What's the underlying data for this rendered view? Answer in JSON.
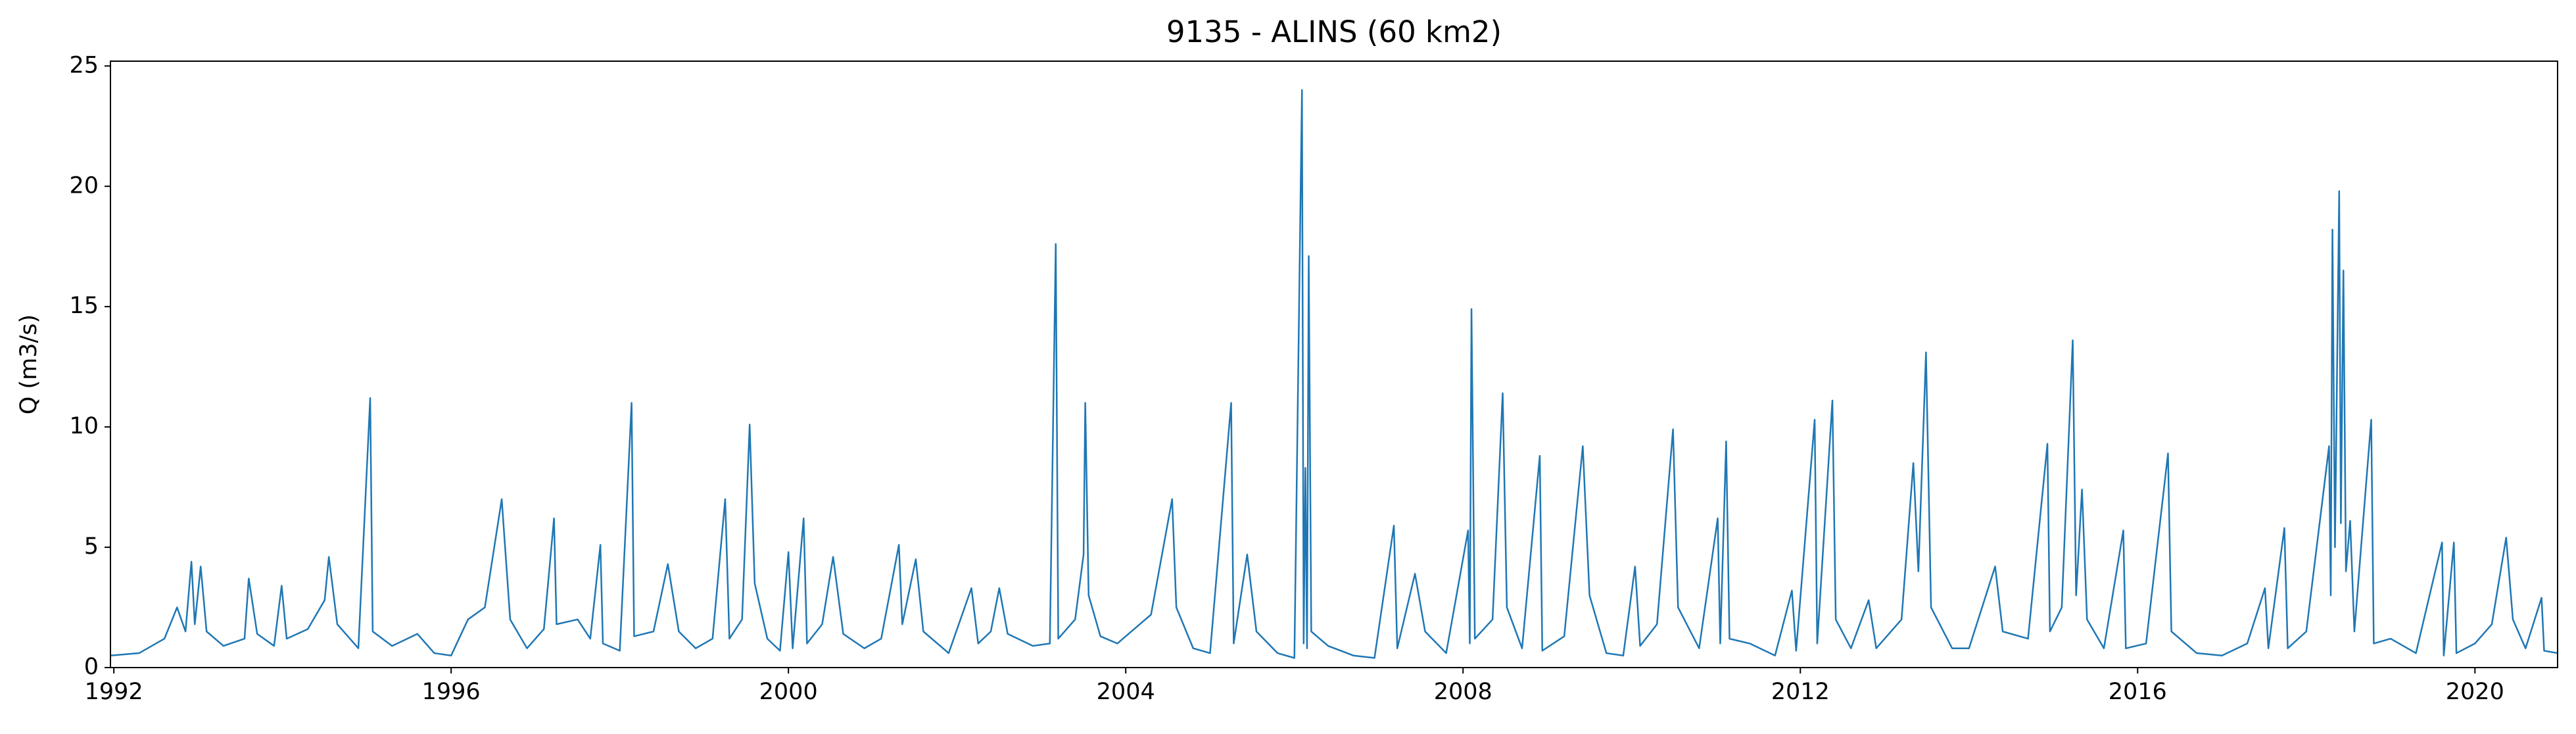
{
  "chart_data": {
    "type": "line",
    "title": "9135 - ALINS (60 km2)",
    "y_label": "Q (m3/s)",
    "color": "#1f77b4",
    "x": [
      1991.96,
      1992.3,
      1992.6,
      1992.75,
      1992.85,
      1992.92,
      1992.96,
      1993.03,
      1993.1,
      1993.3,
      1993.55,
      1993.6,
      1993.7,
      1993.9,
      1993.99,
      1994.05,
      1994.3,
      1994.5,
      1994.55,
      1994.65,
      1994.9,
      1995.04,
      1995.07,
      1995.3,
      1995.6,
      1995.8,
      1996.0,
      1996.2,
      1996.4,
      1996.6,
      1996.7,
      1996.9,
      1997.1,
      1997.22,
      1997.25,
      1997.5,
      1997.65,
      1997.77,
      1997.8,
      1998.0,
      1998.14,
      1998.17,
      1998.4,
      1998.57,
      1998.7,
      1998.9,
      1999.1,
      1999.25,
      1999.3,
      1999.45,
      1999.54,
      1999.6,
      1999.75,
      1999.9,
      2000.0,
      2000.05,
      2000.18,
      2000.22,
      2000.4,
      2000.53,
      2000.65,
      2000.9,
      2001.1,
      2001.31,
      2001.35,
      2001.51,
      2001.6,
      2001.9,
      2002.17,
      2002.25,
      2002.4,
      2002.5,
      2002.6,
      2002.9,
      2003.1,
      2003.17,
      2003.2,
      2003.4,
      2003.5,
      2003.52,
      2003.56,
      2003.7,
      2003.9,
      2004.1,
      2004.3,
      2004.55,
      2004.6,
      2004.8,
      2005.0,
      2005.25,
      2005.28,
      2005.44,
      2005.55,
      2005.8,
      2006.0,
      2006.09,
      2006.11,
      2006.13,
      2006.15,
      2006.17,
      2006.2,
      2006.4,
      2006.7,
      2006.95,
      2007.18,
      2007.22,
      2007.43,
      2007.55,
      2007.8,
      2008.06,
      2008.08,
      2008.1,
      2008.14,
      2008.35,
      2008.47,
      2008.52,
      2008.7,
      2008.91,
      2008.94,
      2009.2,
      2009.42,
      2009.5,
      2009.7,
      2009.9,
      2010.04,
      2010.1,
      2010.3,
      2010.49,
      2010.55,
      2010.8,
      2011.02,
      2011.05,
      2011.12,
      2011.16,
      2011.4,
      2011.7,
      2011.9,
      2011.95,
      2012.17,
      2012.2,
      2012.38,
      2012.42,
      2012.6,
      2012.81,
      2012.9,
      2013.2,
      2013.34,
      2013.4,
      2013.49,
      2013.55,
      2013.8,
      2014.0,
      2014.31,
      2014.4,
      2014.7,
      2014.93,
      2014.96,
      2015.1,
      2015.23,
      2015.27,
      2015.34,
      2015.4,
      2015.6,
      2015.83,
      2015.86,
      2016.1,
      2016.36,
      2016.4,
      2016.7,
      2017.0,
      2017.3,
      2017.51,
      2017.55,
      2017.74,
      2017.78,
      2018.0,
      2018.27,
      2018.29,
      2018.31,
      2018.34,
      2018.39,
      2018.41,
      2018.44,
      2018.47,
      2018.52,
      2018.57,
      2018.77,
      2018.8,
      2019.0,
      2019.3,
      2019.61,
      2019.63,
      2019.75,
      2019.78,
      2020.0,
      2020.2,
      2020.37,
      2020.45,
      2020.6,
      2020.79,
      2020.82,
      2020.98
    ],
    "values": [
      0.5,
      0.6,
      1.2,
      2.5,
      1.5,
      4.4,
      1.8,
      4.2,
      1.5,
      0.9,
      1.2,
      3.7,
      1.4,
      0.9,
      3.4,
      1.2,
      1.6,
      2.8,
      4.6,
      1.8,
      0.8,
      11.2,
      1.5,
      0.9,
      1.4,
      0.6,
      0.5,
      2.0,
      2.5,
      7.0,
      2.0,
      0.8,
      1.6,
      6.2,
      1.8,
      2.0,
      1.2,
      5.1,
      1.0,
      0.7,
      11.0,
      1.3,
      1.5,
      4.3,
      1.5,
      0.8,
      1.2,
      7.0,
      1.2,
      2.0,
      10.1,
      3.5,
      1.2,
      0.7,
      4.8,
      0.8,
      6.2,
      1.0,
      1.8,
      4.6,
      1.4,
      0.8,
      1.2,
      5.1,
      1.8,
      4.5,
      1.5,
      0.6,
      3.3,
      1.0,
      1.5,
      3.3,
      1.4,
      0.9,
      1.0,
      17.6,
      1.2,
      2.0,
      4.7,
      11.0,
      3.0,
      1.3,
      1.0,
      1.6,
      2.2,
      7.0,
      2.5,
      0.8,
      0.6,
      11.0,
      1.0,
      4.7,
      1.5,
      0.6,
      0.4,
      24.0,
      1.0,
      8.3,
      0.8,
      17.1,
      1.5,
      0.9,
      0.5,
      0.4,
      5.9,
      0.8,
      3.9,
      1.5,
      0.6,
      5.7,
      1.0,
      14.9,
      1.2,
      2.0,
      11.4,
      2.5,
      0.8,
      8.8,
      0.7,
      1.3,
      9.2,
      3.0,
      0.6,
      0.5,
      4.2,
      0.9,
      1.8,
      9.9,
      2.5,
      0.8,
      6.2,
      1.0,
      9.4,
      1.2,
      1.0,
      0.5,
      3.2,
      0.7,
      10.3,
      1.0,
      11.1,
      2.0,
      0.8,
      2.8,
      0.8,
      2.0,
      8.5,
      4.0,
      13.1,
      2.5,
      0.8,
      0.8,
      4.2,
      1.5,
      1.2,
      9.3,
      1.5,
      2.5,
      13.6,
      3.0,
      7.4,
      2.0,
      0.8,
      5.7,
      0.8,
      1.0,
      8.9,
      1.5,
      0.6,
      0.5,
      1.0,
      3.3,
      0.8,
      5.8,
      0.8,
      1.5,
      9.2,
      3.0,
      18.2,
      5.0,
      19.8,
      6.0,
      16.5,
      4.0,
      6.1,
      1.5,
      10.3,
      1.0,
      1.2,
      0.6,
      5.2,
      0.5,
      5.2,
      0.6,
      1.0,
      1.8,
      5.4,
      2.0,
      0.8,
      2.9,
      0.7,
      0.6
    ],
    "xlim": [
      1991.96,
      2020.98
    ],
    "xticks": [
      1992,
      1996,
      2000,
      2004,
      2008,
      2012,
      2016,
      2020
    ],
    "ylim": [
      0,
      25.2
    ],
    "yticks": [
      0,
      5,
      10,
      15,
      20,
      25
    ],
    "grid": false
  }
}
